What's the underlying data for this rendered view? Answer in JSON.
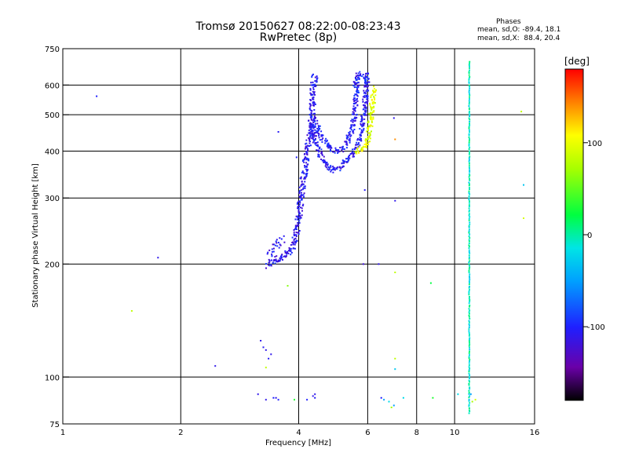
{
  "header": {
    "title": "Tromsø 20150627 08:22:00-08:23:43",
    "subtitle": "RwPretec (8p)"
  },
  "stats": {
    "title": "Phases",
    "o_line": "mean, sd,O: -89.4, 18.1",
    "x_line": "mean, sd,X:  88.4, 20.4"
  },
  "colorbar": {
    "label": "[deg]",
    "ticks": [
      {
        "value": 100,
        "label": "100"
      },
      {
        "value": 0,
        "label": "0"
      },
      {
        "value": -100,
        "label": "-100"
      }
    ],
    "range": [
      -180,
      180
    ]
  },
  "chart_data": {
    "type": "scatter",
    "title": "Tromsø 20150627 08:22:00-08:23:43",
    "subtitle": "RwPretec (8p)",
    "xlabel": "Frequency [MHz]",
    "ylabel": "Stationary phase Virtual Height [km]",
    "x_scale": "log",
    "y_scale": "log",
    "xlim": [
      1,
      16
    ],
    "ylim": [
      75,
      750
    ],
    "x_ticks": [
      {
        "value": 1,
        "label": "1"
      },
      {
        "value": 2,
        "label": "2"
      },
      {
        "value": 4,
        "label": "4"
      },
      {
        "value": 6,
        "label": "6"
      },
      {
        "value": 8,
        "label": "8"
      },
      {
        "value": 10,
        "label": "10"
      },
      {
        "value": 16,
        "label": "16"
      }
    ],
    "y_ticks": [
      {
        "value": 75,
        "label": "75"
      },
      {
        "value": 100,
        "label": "100"
      },
      {
        "value": 200,
        "label": "200"
      },
      {
        "value": 300,
        "label": "300"
      },
      {
        "value": 400,
        "label": "400"
      },
      {
        "value": 500,
        "label": "500"
      },
      {
        "value": 600,
        "label": "600"
      },
      {
        "value": 750,
        "label": "750"
      }
    ],
    "grid_x": [
      2,
      4,
      6,
      8,
      10
    ],
    "grid_y": [
      100,
      200,
      300,
      400,
      500,
      600
    ],
    "grid": true,
    "color_axis": "Phase [deg]",
    "points": [
      [
        1.22,
        560,
        -100
      ],
      [
        1.75,
        208,
        -110
      ],
      [
        1.5,
        150,
        80
      ],
      [
        2.45,
        107,
        -110
      ],
      [
        3.2,
        125,
        -110
      ],
      [
        3.25,
        120,
        -105
      ],
      [
        3.3,
        118,
        -110
      ],
      [
        3.35,
        112,
        -105
      ],
      [
        3.4,
        115,
        -110
      ],
      [
        3.3,
        106,
        80
      ],
      [
        3.15,
        90,
        -110
      ],
      [
        3.45,
        88,
        -100
      ],
      [
        3.3,
        87,
        -110
      ],
      [
        3.5,
        88,
        -110
      ],
      [
        3.55,
        87,
        -100
      ],
      [
        3.55,
        450,
        -105
      ],
      [
        3.75,
        175,
        60
      ],
      [
        3.95,
        385,
        -100
      ],
      [
        3.9,
        87,
        30
      ],
      [
        4.2,
        87,
        -100
      ],
      [
        4.35,
        89,
        -110
      ],
      [
        4.4,
        88,
        -105
      ],
      [
        4.4,
        90,
        -110
      ],
      [
        5.9,
        315,
        -105
      ],
      [
        6.4,
        200,
        -110
      ],
      [
        5.85,
        200,
        -120
      ],
      [
        6.6,
        87,
        -50
      ],
      [
        6.5,
        88,
        -100
      ],
      [
        6.8,
        86,
        -20
      ],
      [
        6.9,
        83,
        70
      ],
      [
        7.0,
        490,
        -110
      ],
      [
        7.05,
        430,
        140
      ],
      [
        7.05,
        295,
        -110
      ],
      [
        7.05,
        190,
        80
      ],
      [
        7.05,
        112,
        80
      ],
      [
        7.05,
        105,
        -30
      ],
      [
        7.0,
        84,
        -50
      ],
      [
        7.4,
        88,
        -20
      ],
      [
        8.7,
        178,
        20
      ],
      [
        8.8,
        88,
        30
      ],
      [
        10.2,
        90,
        -20
      ],
      [
        11.0,
        90,
        -50
      ],
      [
        11.1,
        86,
        70
      ],
      [
        11.3,
        87,
        90
      ],
      [
        14.8,
        510,
        80
      ],
      [
        15.0,
        325,
        -30
      ],
      [
        15.0,
        265,
        90
      ]
    ],
    "traces": [
      {
        "name": "low-cusp",
        "phase": -108,
        "jitter": 0.035,
        "density": 3,
        "path": [
          [
            3.35,
            198
          ],
          [
            3.45,
            203
          ],
          [
            3.6,
            208
          ],
          [
            3.75,
            213
          ],
          [
            3.85,
            222
          ],
          [
            3.95,
            240
          ],
          [
            4.0,
            265
          ],
          [
            4.05,
            295
          ],
          [
            4.1,
            330
          ],
          [
            4.15,
            360
          ],
          [
            4.2,
            395
          ],
          [
            4.28,
            440
          ],
          [
            4.33,
            510
          ],
          [
            4.36,
            580
          ],
          [
            4.4,
            640
          ]
        ]
      },
      {
        "name": "low-cusp-upper",
        "phase": -110,
        "jitter": 0.05,
        "density": 2,
        "path": [
          [
            3.35,
            205
          ],
          [
            3.45,
            215
          ],
          [
            3.55,
            230
          ],
          [
            3.65,
            232
          ]
        ]
      },
      {
        "name": "sweep-lower",
        "phase": -106,
        "jitter": 0.03,
        "density": 3,
        "path": [
          [
            4.3,
            470
          ],
          [
            4.4,
            430
          ],
          [
            4.5,
            405
          ],
          [
            4.6,
            380
          ],
          [
            4.75,
            365
          ],
          [
            4.9,
            355
          ],
          [
            5.05,
            358
          ],
          [
            5.2,
            368
          ],
          [
            5.35,
            382
          ],
          [
            5.5,
            395
          ],
          [
            5.65,
            415
          ],
          [
            5.8,
            450
          ],
          [
            5.9,
            520
          ],
          [
            5.95,
            600
          ],
          [
            6.0,
            640
          ]
        ]
      },
      {
        "name": "sweep-upper",
        "phase": -104,
        "jitter": 0.03,
        "density": 3,
        "path": [
          [
            4.35,
            500
          ],
          [
            4.45,
            470
          ],
          [
            4.55,
            440
          ],
          [
            4.7,
            420
          ],
          [
            4.85,
            405
          ],
          [
            5.0,
            400
          ],
          [
            5.15,
            405
          ],
          [
            5.3,
            420
          ],
          [
            5.45,
            450
          ],
          [
            5.55,
            500
          ],
          [
            5.6,
            560
          ],
          [
            5.65,
            620
          ],
          [
            5.7,
            645
          ]
        ]
      },
      {
        "name": "sweep-top",
        "phase": -102,
        "jitter": 0.025,
        "density": 2,
        "path": [
          [
            5.55,
            600
          ],
          [
            5.65,
            630
          ],
          [
            5.75,
            640
          ],
          [
            5.85,
            630
          ],
          [
            5.95,
            620
          ],
          [
            6.0,
            645
          ]
        ]
      },
      {
        "name": "yellow-x",
        "phase": 95,
        "jitter": 0.03,
        "density": 3,
        "path": [
          [
            5.6,
            395
          ],
          [
            5.75,
            405
          ],
          [
            5.9,
            410
          ],
          [
            6.0,
            425
          ],
          [
            6.05,
            450
          ],
          [
            6.1,
            480
          ],
          [
            6.15,
            520
          ],
          [
            6.2,
            560
          ],
          [
            6.25,
            590
          ]
        ]
      },
      {
        "name": "sounder-column",
        "phase": -10,
        "jitter": 0.004,
        "density": 1,
        "path": [
          [
            10.9,
            80
          ],
          [
            10.9,
            95
          ],
          [
            10.9,
            130
          ],
          [
            10.9,
            200
          ],
          [
            10.9,
            300
          ],
          [
            10.9,
            400
          ],
          [
            10.9,
            500
          ],
          [
            10.9,
            600
          ],
          [
            10.9,
            700
          ]
        ]
      }
    ]
  }
}
